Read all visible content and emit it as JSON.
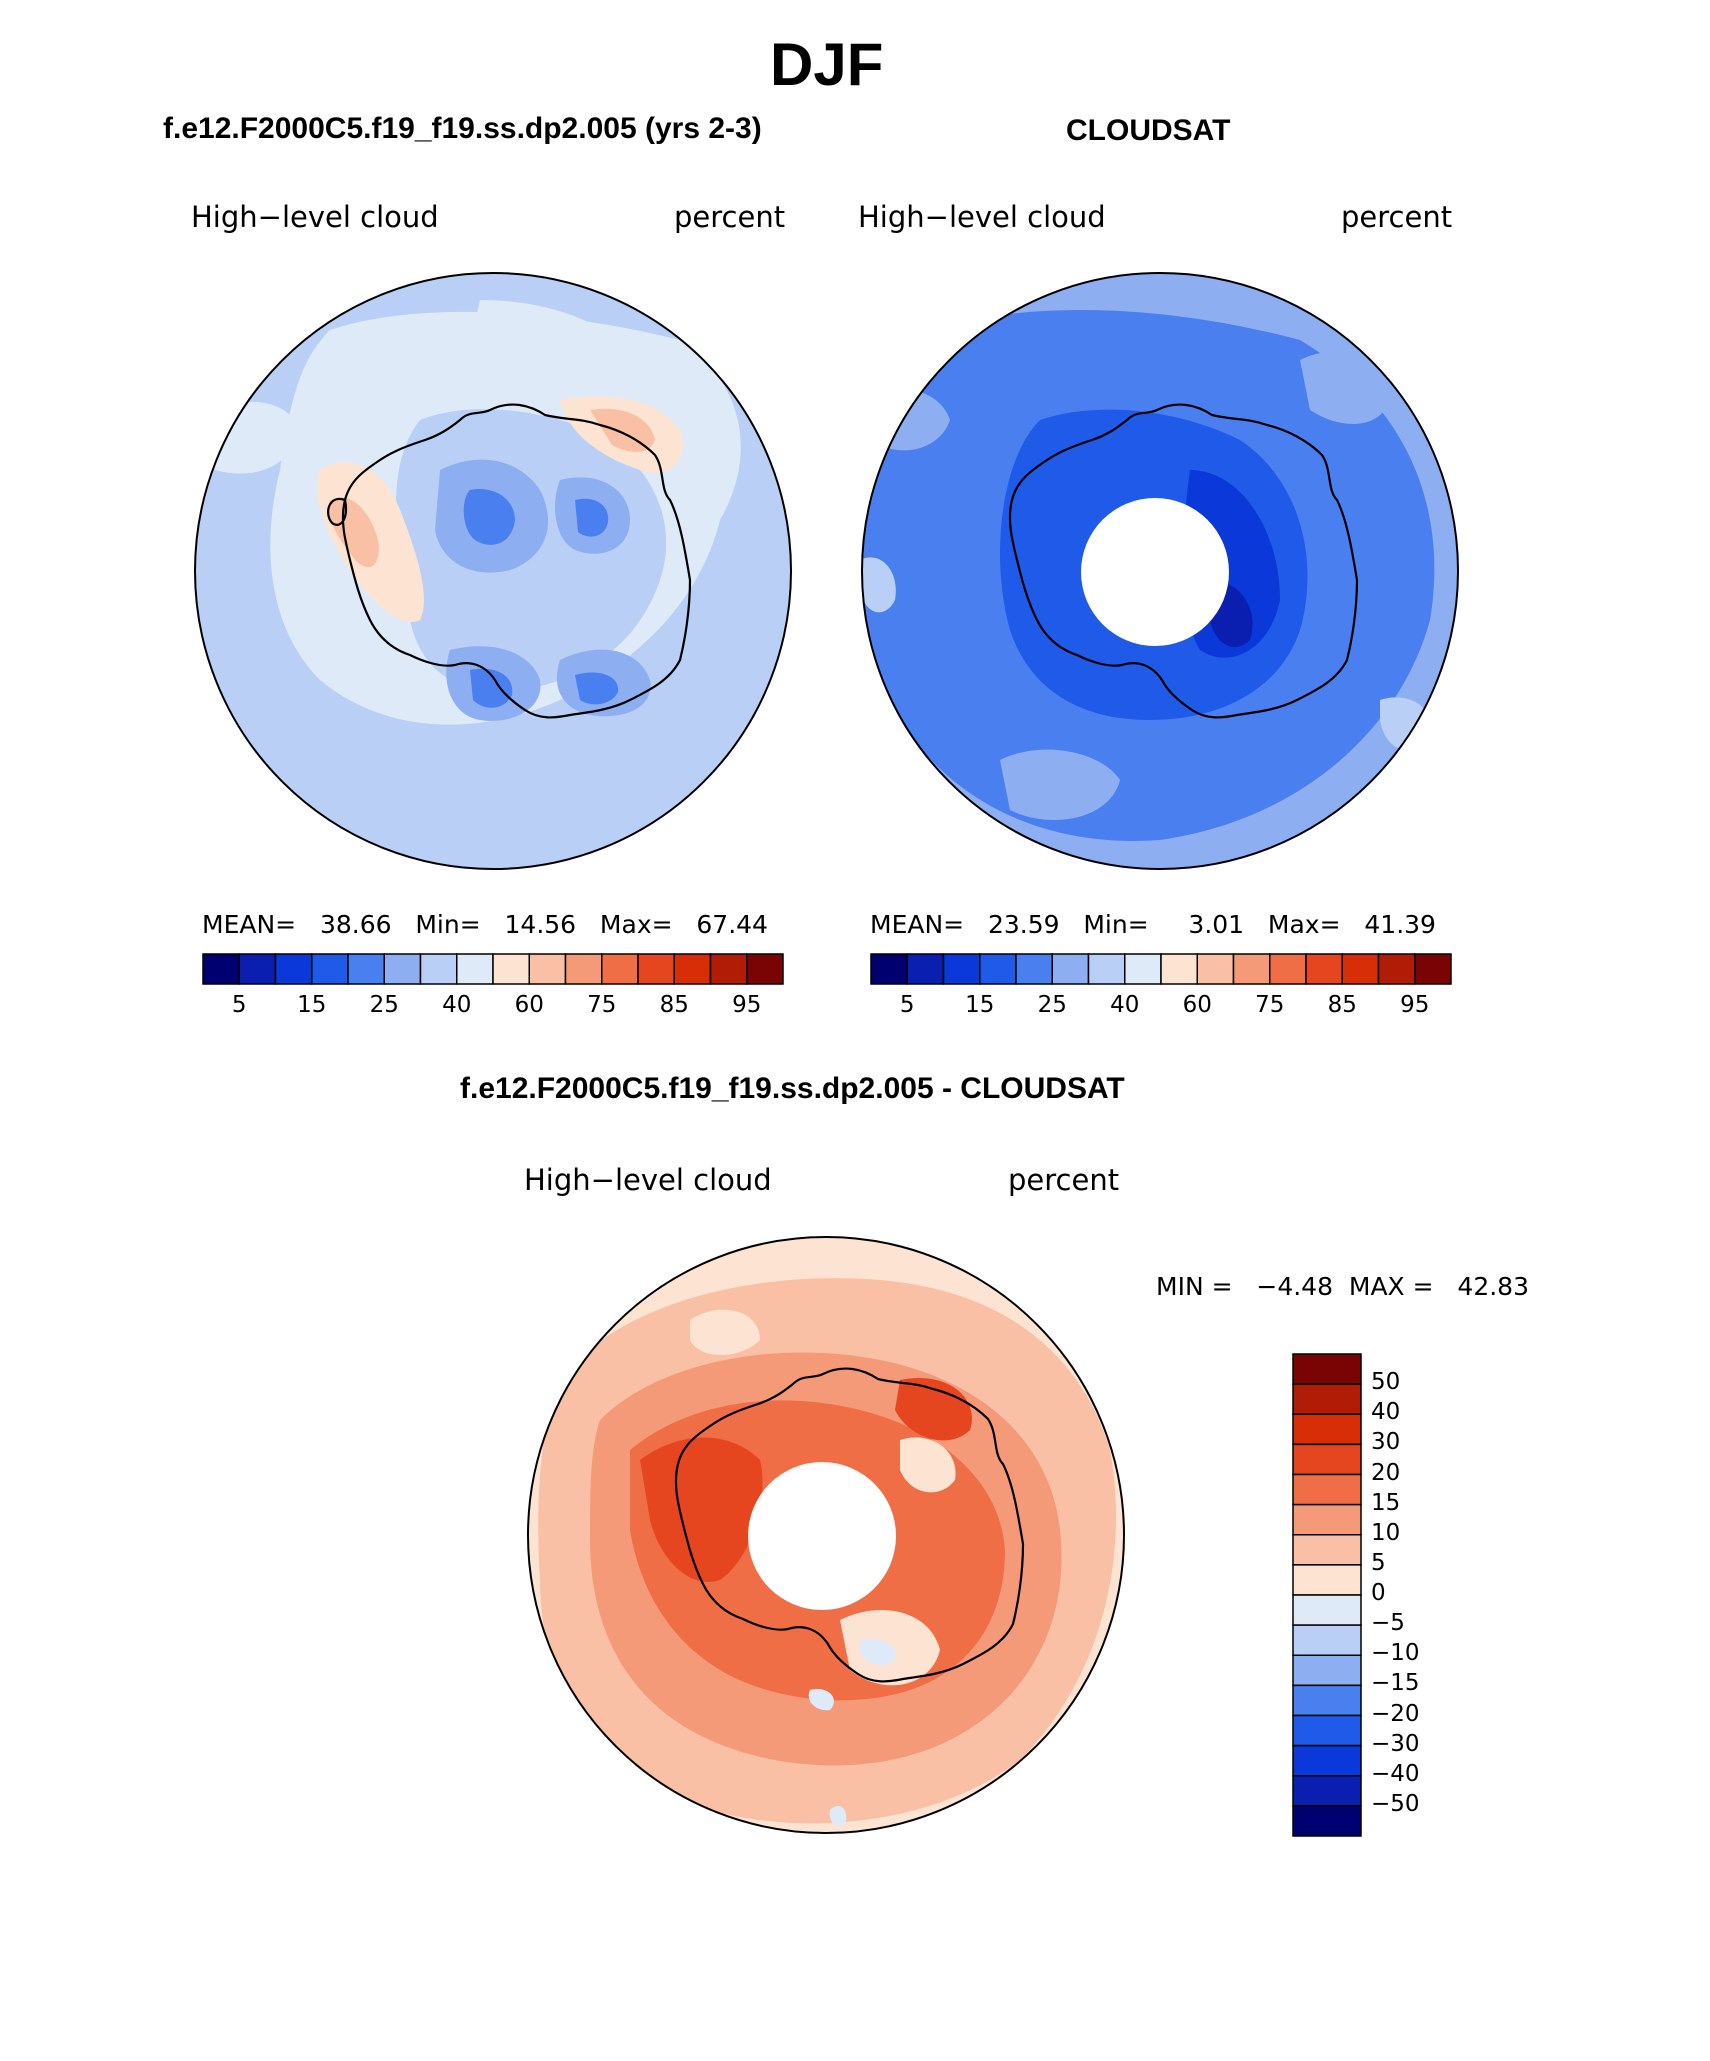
{
  "header": {
    "season": "DJF",
    "model_case": "f.e12.F2000C5.f19_f19.ss.dp2.005 (yrs 2-3)",
    "obs_case": "CLOUDSAT",
    "diff_case": "f.e12.F2000C5.f19_f19.ss.dp2.005 - CLOUDSAT"
  },
  "panels": {
    "model": {
      "variable": "High−level cloud",
      "units": "percent",
      "stats": "MEAN=   38.66   Min=   14.56   Max=   67.44"
    },
    "obs": {
      "variable": "High−level cloud",
      "units": "percent",
      "stats": "MEAN=   23.59   Min=     3.01   Max=   41.39"
    },
    "diff": {
      "variable": "High−level cloud",
      "units": "percent",
      "stats": "MIN =   −4.48  MAX =   42.83"
    }
  },
  "colorbars": {
    "abs": {
      "colors": [
        "#000070",
        "#0a1fb0",
        "#0b38d8",
        "#1f5ae8",
        "#4a7ff0",
        "#8eaef2",
        "#b9cff6",
        "#dfeaf9",
        "#fde4d2",
        "#f9c0a5",
        "#f59a78",
        "#f06e45",
        "#e6461f",
        "#d82e08",
        "#b01c06",
        "#7a0303"
      ],
      "labels": [
        "5",
        "15",
        "25",
        "40",
        "60",
        "75",
        "85",
        "95"
      ]
    },
    "diff": {
      "colors": [
        "#7a0303",
        "#b01c06",
        "#d82e08",
        "#e6461f",
        "#f06e45",
        "#f59a78",
        "#f9c0a5",
        "#fde4d2",
        "#dfeaf9",
        "#b9cff6",
        "#8eaef2",
        "#4a7ff0",
        "#1f5ae8",
        "#0b38d8",
        "#0a1fb0",
        "#000070"
      ],
      "labels": [
        "50",
        "40",
        "30",
        "20",
        "15",
        "10",
        "5",
        "0",
        "−5",
        "−10",
        "−15",
        "−20",
        "−30",
        "−40",
        "−50"
      ]
    }
  }
}
